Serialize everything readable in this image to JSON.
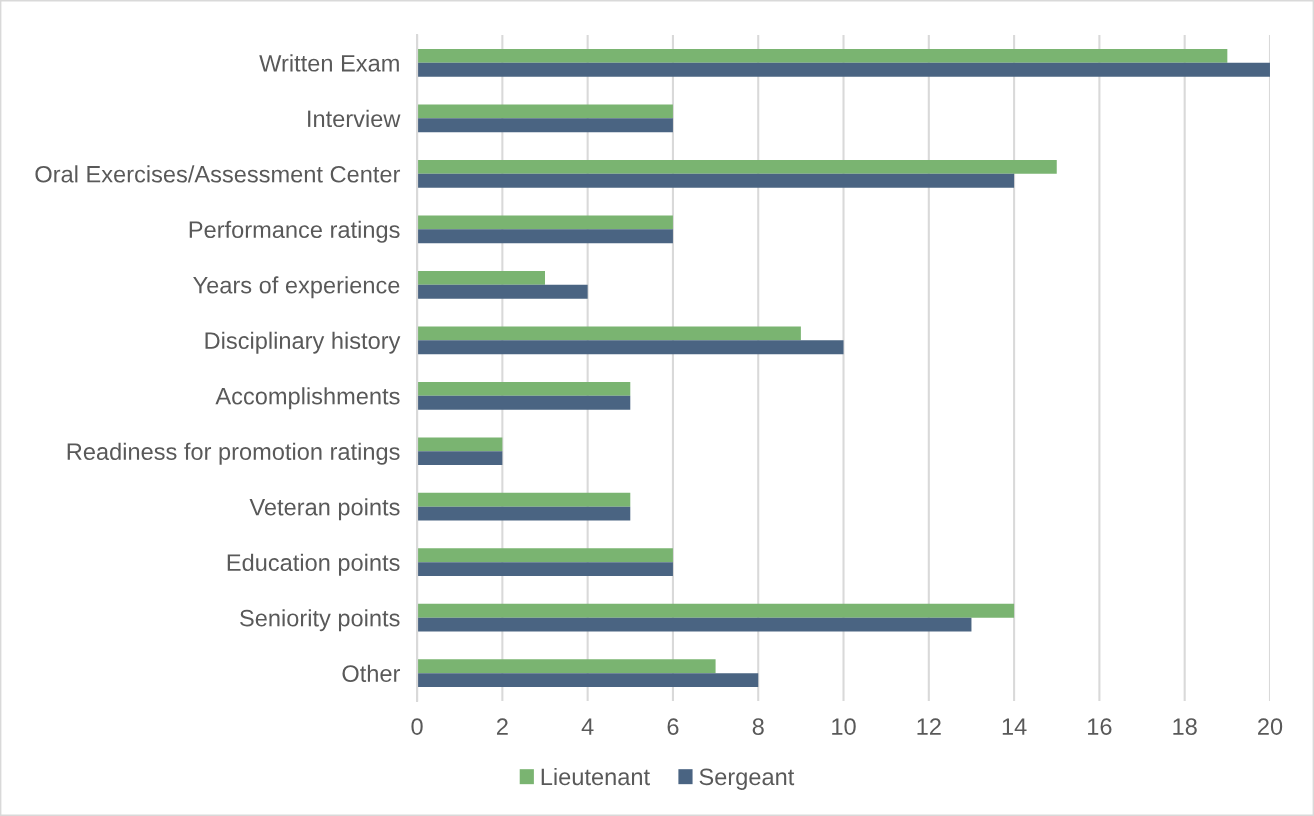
{
  "chart_data": {
    "type": "bar",
    "orientation": "horizontal",
    "categories": [
      "Written Exam",
      "Interview",
      "Oral Exercises/Assessment Center",
      "Performance ratings",
      "Years of experience",
      "Disciplinary history",
      "Accomplishments",
      "Readiness for promotion ratings",
      "Veteran points",
      "Education points",
      "Seniority points",
      "Other"
    ],
    "series": [
      {
        "name": "Lieutenant",
        "color": "#7ab471",
        "values": [
          19,
          6,
          15,
          6,
          3,
          9,
          5,
          2,
          5,
          6,
          14,
          7
        ]
      },
      {
        "name": "Sergeant",
        "color": "#4a6482",
        "values": [
          20,
          6,
          14,
          6,
          4,
          10,
          5,
          2,
          5,
          6,
          13,
          8
        ]
      }
    ],
    "xlim": [
      0,
      20
    ],
    "xticks": [
      0,
      2,
      4,
      6,
      8,
      10,
      12,
      14,
      16,
      18,
      20
    ],
    "grid": "x",
    "legend": "bottom"
  }
}
